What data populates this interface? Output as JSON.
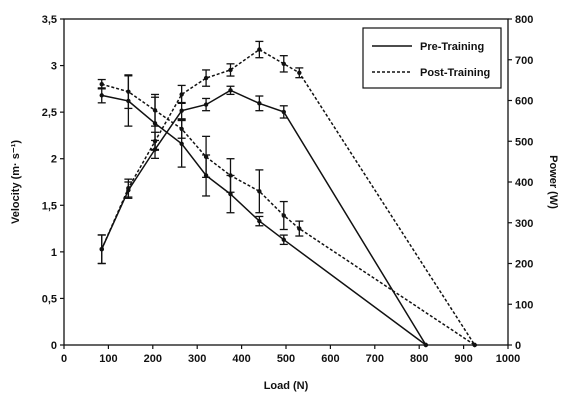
{
  "chart_data": {
    "type": "line",
    "xlabel": "Load (N)",
    "ylabel_left": "Velocity (m· s⁻¹)",
    "ylabel_right": "Power (W)",
    "xlim": [
      0,
      1000
    ],
    "ylim_left": [
      0,
      3.5
    ],
    "ylim_right": [
      0,
      800
    ],
    "x_ticks": [
      "0",
      "100",
      "200",
      "300",
      "400",
      "500",
      "600",
      "700",
      "800",
      "900",
      "1000"
    ],
    "y_left_ticks": [
      "0",
      "0,5",
      "1",
      "1,5",
      "2",
      "2,5",
      "3",
      "3,5"
    ],
    "y_right_ticks": [
      "0",
      "100",
      "200",
      "300",
      "400",
      "500",
      "600",
      "700",
      "800"
    ],
    "legend_position": "top-right",
    "legend": [
      {
        "label": "Pre-Training",
        "style": "solid"
      },
      {
        "label": "Post-Training",
        "style": "dashed"
      }
    ],
    "series": [
      {
        "name": "Pre-Training",
        "metric": "velocity",
        "axis": "left",
        "style": "solid",
        "x": [
          85,
          145,
          205,
          265,
          320,
          375,
          440,
          495,
          815
        ],
        "y": [
          2.68,
          2.62,
          2.38,
          2.16,
          1.82,
          1.62,
          1.33,
          1.13,
          0
        ],
        "err": [
          0.08,
          0.27,
          0.28,
          0.25,
          0.22,
          0.2,
          0.05,
          0.05,
          0
        ]
      },
      {
        "name": "Post-Training",
        "metric": "velocity",
        "axis": "left",
        "style": "dashed",
        "x": [
          85,
          145,
          205,
          265,
          320,
          375,
          440,
          495,
          530,
          925
        ],
        "y": [
          2.8,
          2.72,
          2.52,
          2.32,
          2.02,
          1.82,
          1.65,
          1.39,
          1.25,
          0
        ],
        "err": [
          0.05,
          0.18,
          0.17,
          0.1,
          0.22,
          0.18,
          0.23,
          0.15,
          0.08,
          0
        ]
      },
      {
        "name": "Pre-Training",
        "metric": "power",
        "axis": "right",
        "style": "solid",
        "x": [
          85,
          145,
          205,
          265,
          320,
          375,
          440,
          495,
          815
        ],
        "y": [
          235,
          380,
          480,
          575,
          590,
          625,
          593,
          572,
          0
        ],
        "err": [
          35,
          20,
          22,
          20,
          15,
          10,
          18,
          15,
          0
        ]
      },
      {
        "name": "Post-Training",
        "metric": "power",
        "axis": "right",
        "style": "dashed",
        "x": [
          85,
          145,
          205,
          265,
          320,
          375,
          440,
          495,
          530,
          925
        ],
        "y": [
          235,
          385,
          500,
          615,
          655,
          675,
          725,
          690,
          668,
          0
        ],
        "err": [
          35,
          22,
          22,
          22,
          20,
          15,
          20,
          20,
          12,
          0
        ]
      }
    ]
  }
}
